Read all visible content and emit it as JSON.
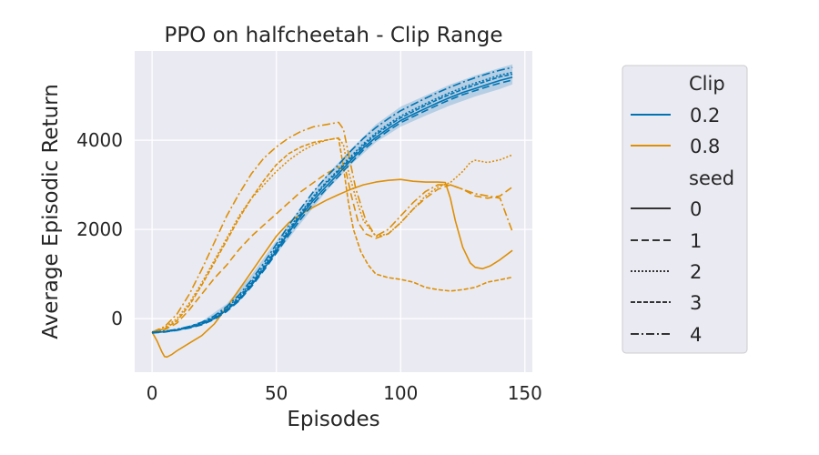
{
  "chart_data": {
    "type": "line",
    "title": "PPO on halfcheetah - Clip Range",
    "xlabel": "Episodes",
    "ylabel": "Average Episodic Return",
    "xlim": [
      -7,
      153
    ],
    "ylim": [
      -1200,
      6000
    ],
    "xticks": [
      0,
      50,
      100,
      150
    ],
    "yticks": [
      0,
      2000,
      4000
    ],
    "grid": true,
    "legend_position": "right, outside plot",
    "legend": {
      "hue_title": "Clip",
      "hue_entries": [
        "0.2",
        "0.8"
      ],
      "style_title": "seed",
      "style_entries": [
        "0",
        "1",
        "2",
        "3",
        "4"
      ]
    },
    "colors": {
      "0.2": "#0173b2",
      "0.8": "#de8f05",
      "band": "#0173b2",
      "background": "#eaeaf2"
    },
    "dash_styles": {
      "0": "",
      "1": "8,4",
      "2": "2,2",
      "3": "5,2",
      "4": "9,3,2,3"
    },
    "band": {
      "name": "0.2",
      "x": [
        0,
        10,
        20,
        30,
        40,
        50,
        60,
        70,
        80,
        90,
        100,
        110,
        120,
        130,
        140,
        145
      ],
      "low": [
        -330,
        -290,
        -150,
        200,
        780,
        1450,
        2150,
        2850,
        3450,
        3950,
        4300,
        4550,
        4780,
        4980,
        5150,
        5250
      ],
      "high": [
        -300,
        -250,
        -60,
        330,
        980,
        1750,
        2500,
        3200,
        3800,
        4350,
        4750,
        5000,
        5250,
        5450,
        5620,
        5700
      ]
    },
    "series": [
      {
        "name": "0.2",
        "seed": "0",
        "x": [
          0,
          5,
          10,
          15,
          20,
          25,
          30,
          35,
          40,
          45,
          50,
          55,
          60,
          65,
          70,
          75,
          80,
          85,
          90,
          95,
          100,
          105,
          110,
          115,
          120,
          125,
          130,
          135,
          140,
          145
        ],
        "y": [
          -310,
          -290,
          -250,
          -200,
          -120,
          0,
          190,
          420,
          750,
          1110,
          1520,
          1930,
          2310,
          2660,
          2960,
          3250,
          3550,
          3830,
          4060,
          4260,
          4440,
          4580,
          4710,
          4840,
          4960,
          5070,
          5160,
          5250,
          5340,
          5410
        ]
      },
      {
        "name": "0.2",
        "seed": "1",
        "x": [
          0,
          5,
          10,
          15,
          20,
          25,
          30,
          35,
          40,
          45,
          50,
          55,
          60,
          65,
          70,
          75,
          80,
          85,
          90,
          95,
          100,
          105,
          110,
          115,
          120,
          125,
          130,
          135,
          140,
          145
        ],
        "y": [
          -320,
          -300,
          -260,
          -210,
          -140,
          -20,
          160,
          400,
          720,
          1080,
          1470,
          1870,
          2240,
          2590,
          2900,
          3190,
          3490,
          3780,
          4010,
          4210,
          4390,
          4530,
          4660,
          4790,
          4910,
          5020,
          5110,
          5200,
          5280,
          5350
        ]
      },
      {
        "name": "0.2",
        "seed": "2",
        "x": [
          0,
          5,
          10,
          15,
          20,
          25,
          30,
          35,
          40,
          45,
          50,
          55,
          60,
          65,
          70,
          75,
          80,
          85,
          90,
          95,
          100,
          105,
          110,
          115,
          120,
          125,
          130,
          135,
          140,
          145
        ],
        "y": [
          -300,
          -280,
          -240,
          -180,
          -90,
          40,
          240,
          490,
          820,
          1190,
          1600,
          2010,
          2390,
          2750,
          3060,
          3340,
          3640,
          3920,
          4160,
          4360,
          4540,
          4680,
          4820,
          4950,
          5070,
          5180,
          5280,
          5370,
          5460,
          5520
        ]
      },
      {
        "name": "0.2",
        "seed": "3",
        "x": [
          0,
          5,
          10,
          15,
          20,
          25,
          30,
          35,
          40,
          45,
          50,
          55,
          60,
          65,
          70,
          75,
          80,
          85,
          90,
          95,
          100,
          105,
          110,
          115,
          120,
          125,
          130,
          135,
          140,
          145
        ],
        "y": [
          -315,
          -295,
          -255,
          -195,
          -110,
          20,
          210,
          460,
          790,
          1150,
          1560,
          1970,
          2360,
          2720,
          3030,
          3310,
          3600,
          3880,
          4120,
          4320,
          4500,
          4640,
          4780,
          4910,
          5030,
          5140,
          5240,
          5330,
          5420,
          5480
        ]
      },
      {
        "name": "0.2",
        "seed": "4",
        "x": [
          0,
          5,
          10,
          15,
          20,
          25,
          30,
          35,
          40,
          45,
          50,
          55,
          60,
          65,
          70,
          75,
          80,
          85,
          90,
          95,
          100,
          105,
          110,
          115,
          120,
          125,
          130,
          135,
          140,
          145
        ],
        "y": [
          -305,
          -285,
          -240,
          -175,
          -80,
          60,
          270,
          530,
          870,
          1250,
          1670,
          2090,
          2480,
          2850,
          3170,
          3450,
          3760,
          4040,
          4280,
          4480,
          4660,
          4800,
          4940,
          5070,
          5190,
          5300,
          5400,
          5490,
          5570,
          5630
        ]
      },
      {
        "name": "0.8",
        "seed": "0",
        "x": [
          0,
          2,
          4,
          5,
          6,
          8,
          10,
          15,
          20,
          25,
          30,
          35,
          40,
          45,
          50,
          55,
          60,
          65,
          70,
          75,
          80,
          85,
          90,
          95,
          100,
          105,
          110,
          115,
          118,
          120,
          122,
          125,
          128,
          130,
          133,
          136,
          140,
          145
        ],
        "y": [
          -300,
          -500,
          -750,
          -850,
          -860,
          -800,
          -720,
          -550,
          -380,
          -120,
          250,
          650,
          1050,
          1450,
          1850,
          2150,
          2350,
          2500,
          2650,
          2780,
          2900,
          3000,
          3060,
          3100,
          3120,
          3080,
          3060,
          3060,
          3050,
          2700,
          2200,
          1600,
          1250,
          1150,
          1120,
          1180,
          1320,
          1530
        ]
      },
      {
        "name": "0.8",
        "seed": "1",
        "x": [
          0,
          5,
          10,
          15,
          20,
          25,
          30,
          35,
          40,
          45,
          50,
          55,
          60,
          65,
          70,
          75,
          78,
          80,
          83,
          86,
          90,
          95,
          100,
          105,
          110,
          115,
          120,
          125,
          130,
          135,
          140,
          145
        ],
        "y": [
          -300,
          -250,
          -100,
          200,
          550,
          900,
          1200,
          1550,
          1850,
          2100,
          2350,
          2600,
          2850,
          3050,
          3250,
          3400,
          3300,
          2800,
          2150,
          1900,
          1800,
          1900,
          2150,
          2450,
          2700,
          2900,
          3000,
          2900,
          2750,
          2700,
          2750,
          2950
        ]
      },
      {
        "name": "0.8",
        "seed": "2",
        "x": [
          0,
          5,
          10,
          15,
          20,
          25,
          30,
          35,
          40,
          45,
          50,
          55,
          60,
          65,
          70,
          75,
          77,
          79,
          82,
          85,
          90,
          95,
          100,
          105,
          110,
          115,
          120,
          125,
          128,
          130,
          135,
          140,
          145
        ],
        "y": [
          -300,
          -200,
          0,
          350,
          800,
          1300,
          1800,
          2300,
          2700,
          3000,
          3300,
          3550,
          3750,
          3900,
          4000,
          4050,
          3900,
          3300,
          2700,
          2200,
          1850,
          1900,
          2150,
          2450,
          2750,
          2950,
          3050,
          3300,
          3500,
          3550,
          3500,
          3560,
          3670
        ]
      },
      {
        "name": "0.8",
        "seed": "3",
        "x": [
          0,
          5,
          10,
          15,
          20,
          25,
          30,
          35,
          40,
          45,
          50,
          55,
          60,
          65,
          70,
          75,
          77,
          79,
          81,
          84,
          87,
          90,
          95,
          100,
          105,
          110,
          115,
          120,
          125,
          130,
          135,
          140,
          145
        ],
        "y": [
          -300,
          -230,
          -50,
          300,
          750,
          1250,
          1750,
          2250,
          2700,
          3100,
          3450,
          3700,
          3850,
          3950,
          4000,
          4050,
          3400,
          2600,
          2000,
          1500,
          1200,
          1000,
          920,
          880,
          820,
          700,
          650,
          620,
          650,
          700,
          820,
          870,
          930
        ]
      },
      {
        "name": "0.8",
        "seed": "4",
        "x": [
          0,
          5,
          10,
          15,
          20,
          25,
          30,
          35,
          40,
          45,
          50,
          55,
          60,
          65,
          70,
          75,
          77,
          79,
          82,
          86,
          90,
          95,
          100,
          105,
          110,
          115,
          120,
          125,
          130,
          135,
          140,
          145
        ],
        "y": [
          -300,
          -180,
          100,
          550,
          1100,
          1700,
          2300,
          2800,
          3250,
          3600,
          3850,
          4050,
          4200,
          4300,
          4350,
          4400,
          4250,
          3700,
          2900,
          2200,
          1850,
          2000,
          2300,
          2600,
          2850,
          3000,
          3000,
          2900,
          2800,
          2750,
          2700,
          1950
        ]
      }
    ]
  }
}
